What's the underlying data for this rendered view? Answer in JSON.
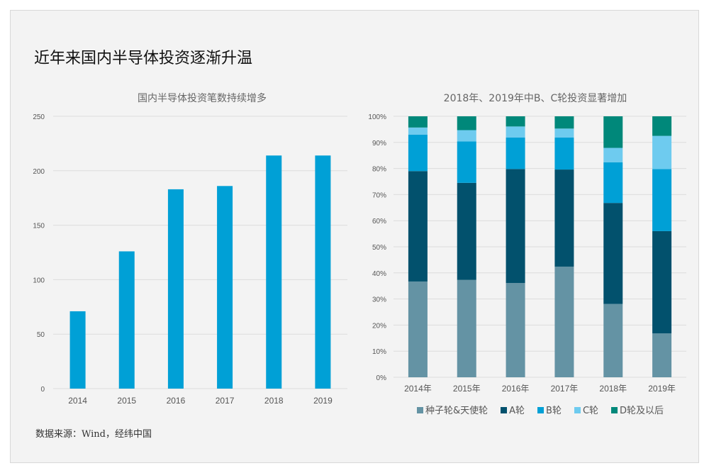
{
  "title": "近年来国内半导体投资逐渐升温",
  "source": "数据来源：Wind，经纬中国",
  "chart_data": [
    {
      "type": "bar",
      "title": "国内半导体投资笔数持续增多",
      "categories": [
        "2014",
        "2015",
        "2016",
        "2017",
        "2018",
        "2019"
      ],
      "values": [
        71,
        126,
        183,
        186,
        214,
        214
      ],
      "ylim": [
        0,
        250
      ],
      "yticks": [
        "0",
        "50",
        "100",
        "150",
        "200",
        "250"
      ],
      "grid": true,
      "color": "#00a0d6"
    },
    {
      "type": "bar",
      "stacked": true,
      "title": "2018年、2019年中B、C轮投资显著增加",
      "categories": [
        "2014年",
        "2015年",
        "2016年",
        "2017年",
        "2018年",
        "2019年"
      ],
      "ylim": [
        0,
        100
      ],
      "yticks": [
        "0%",
        "10%",
        "20%",
        "30%",
        "40%",
        "50%",
        "60%",
        "70%",
        "80%",
        "90%",
        "100%"
      ],
      "grid": true,
      "legend_position": "bottom",
      "series": [
        {
          "name": "种子轮&天使轮",
          "color": "#6493a4",
          "values": [
            36.7,
            37.3,
            36.1,
            42.4,
            28.1,
            16.8
          ]
        },
        {
          "name": "A轮",
          "color": "#02516d",
          "values": [
            42.3,
            37.2,
            43.7,
            37.2,
            38.7,
            39.2
          ]
        },
        {
          "name": "B轮",
          "color": "#00a0d6",
          "values": [
            14.0,
            15.9,
            12.1,
            12.3,
            15.6,
            23.8
          ]
        },
        {
          "name": "C轮",
          "color": "#6ecbef",
          "values": [
            2.7,
            4.3,
            4.2,
            3.4,
            5.5,
            12.7
          ]
        },
        {
          "name": "D轮及以后",
          "color": "#00887a",
          "values": [
            4.3,
            5.3,
            3.9,
            4.7,
            12.1,
            7.5
          ]
        }
      ]
    }
  ]
}
